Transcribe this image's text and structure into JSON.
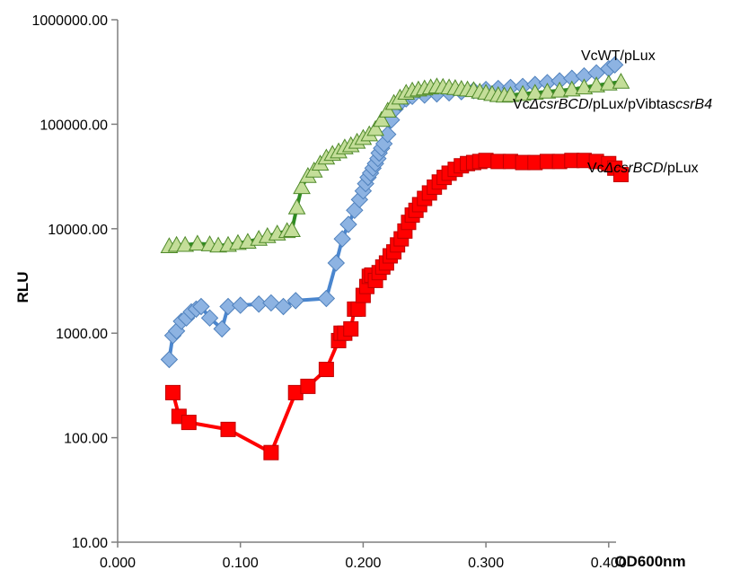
{
  "chart_data": {
    "type": "scatter",
    "title": "",
    "xlabel": "OD600nm",
    "ylabel": "RLU",
    "xlim": [
      0,
      0.45
    ],
    "ylim": [
      10,
      1000000
    ],
    "yscale": "log",
    "grid": false,
    "legend": "inline labels at right end of each series",
    "x_ticks": [
      "0.000",
      "0.100",
      "0.200",
      "0.300",
      "0.400"
    ],
    "y_ticks": [
      "10.00",
      "100.00",
      "1000.00",
      "10000.00",
      "100000.00",
      "1000000.00"
    ],
    "series": [
      {
        "name": "VcWT/pLux",
        "name_prefix": "VcWT/pLux",
        "name_italic": "",
        "name_suffix": "",
        "marker": "diamond",
        "line_color": "#4a86cf",
        "fill_color": "#8db3e2",
        "edge_color": "#4f81bd",
        "x": [
          0.042,
          0.045,
          0.048,
          0.052,
          0.056,
          0.06,
          0.064,
          0.068,
          0.075,
          0.085,
          0.09,
          0.1,
          0.115,
          0.125,
          0.135,
          0.145,
          0.17,
          0.178,
          0.183,
          0.188,
          0.193,
          0.197,
          0.2,
          0.202,
          0.204,
          0.206,
          0.208,
          0.21,
          0.212,
          0.213,
          0.215,
          0.217,
          0.22,
          0.223,
          0.226,
          0.23,
          0.235,
          0.24,
          0.25,
          0.26,
          0.27,
          0.28,
          0.29,
          0.3,
          0.31,
          0.32,
          0.33,
          0.34,
          0.35,
          0.36,
          0.37,
          0.38,
          0.39,
          0.4,
          0.405
        ],
        "y": [
          560,
          950,
          1050,
          1300,
          1400,
          1600,
          1700,
          1800,
          1400,
          1100,
          1800,
          1850,
          1900,
          1950,
          1800,
          2050,
          2150,
          4700,
          8000,
          11000,
          15000,
          19000,
          23000,
          27000,
          31000,
          34000,
          38000,
          42000,
          47000,
          53000,
          59000,
          65000,
          80000,
          110000,
          140000,
          160000,
          175000,
          185000,
          190000,
          195000,
          200000,
          205000,
          210000,
          215000,
          220000,
          225000,
          230000,
          240000,
          250000,
          260000,
          275000,
          290000,
          310000,
          340000,
          370000
        ]
      },
      {
        "name": "VcΔcsrBCD/pLux/pVibtascsrB4",
        "name_prefix": "Vc",
        "name_italic": "ΔcsrBCD",
        "name_suffix": "/pLux/pVibtas",
        "name_italic2": "csrB4",
        "marker": "triangle",
        "line_color": "#2e8b22",
        "fill_color": "#c4de99",
        "edge_color": "#4f8a2a",
        "x": [
          0.042,
          0.048,
          0.055,
          0.065,
          0.075,
          0.082,
          0.09,
          0.098,
          0.106,
          0.115,
          0.122,
          0.13,
          0.138,
          0.142,
          0.146,
          0.15,
          0.155,
          0.16,
          0.165,
          0.17,
          0.175,
          0.18,
          0.185,
          0.19,
          0.195,
          0.2,
          0.205,
          0.21,
          0.215,
          0.22,
          0.225,
          0.23,
          0.235,
          0.24,
          0.245,
          0.25,
          0.255,
          0.26,
          0.265,
          0.27,
          0.275,
          0.28,
          0.285,
          0.29,
          0.295,
          0.3,
          0.305,
          0.31,
          0.315,
          0.32,
          0.33,
          0.34,
          0.35,
          0.36,
          0.37,
          0.38,
          0.39,
          0.4,
          0.41
        ],
        "y": [
          6800,
          7000,
          7000,
          7200,
          7100,
          6900,
          7000,
          7300,
          7500,
          8000,
          8500,
          9000,
          9500,
          9700,
          16000,
          25000,
          32000,
          36000,
          42000,
          48000,
          52000,
          55000,
          60000,
          63000,
          68000,
          74000,
          80000,
          90000,
          110000,
          135000,
          160000,
          180000,
          200000,
          210000,
          215000,
          220000,
          225000,
          230000,
          228000,
          225000,
          222000,
          218000,
          215000,
          212000,
          205000,
          200000,
          195000,
          190000,
          188000,
          190000,
          195000,
          200000,
          205000,
          210000,
          215000,
          225000,
          235000,
          245000,
          255000
        ]
      },
      {
        "name": "VcΔcsrBCD/pLux",
        "name_prefix": "Vc",
        "name_italic": "ΔcsrBCD",
        "name_suffix": "/pLux",
        "name_italic2": "",
        "marker": "square",
        "line_color": "#ff0000",
        "fill_color": "#ff0000",
        "edge_color": "#c00000",
        "x": [
          0.045,
          0.05,
          0.058,
          0.09,
          0.125,
          0.145,
          0.155,
          0.17,
          0.18,
          0.182,
          0.185,
          0.19,
          0.193,
          0.196,
          0.2,
          0.203,
          0.205,
          0.207,
          0.21,
          0.213,
          0.216,
          0.219,
          0.222,
          0.225,
          0.228,
          0.231,
          0.234,
          0.237,
          0.24,
          0.243,
          0.246,
          0.25,
          0.254,
          0.258,
          0.262,
          0.266,
          0.27,
          0.275,
          0.28,
          0.285,
          0.29,
          0.295,
          0.3,
          0.31,
          0.32,
          0.33,
          0.34,
          0.35,
          0.36,
          0.37,
          0.38,
          0.39,
          0.4,
          0.405,
          0.41
        ],
        "y": [
          270,
          160,
          140,
          120,
          72,
          270,
          310,
          450,
          850,
          1000,
          1000,
          1100,
          1700,
          1700,
          2300,
          2800,
          3500,
          3600,
          3200,
          3800,
          4300,
          4700,
          5500,
          6000,
          7000,
          8000,
          9500,
          11500,
          13500,
          15000,
          17000,
          19500,
          22000,
          25000,
          28000,
          31000,
          34000,
          37000,
          40000,
          42000,
          43000,
          44000,
          45000,
          44000,
          44000,
          43000,
          43000,
          44000,
          44000,
          45000,
          45000,
          44000,
          42000,
          38000,
          33000
        ]
      }
    ]
  }
}
